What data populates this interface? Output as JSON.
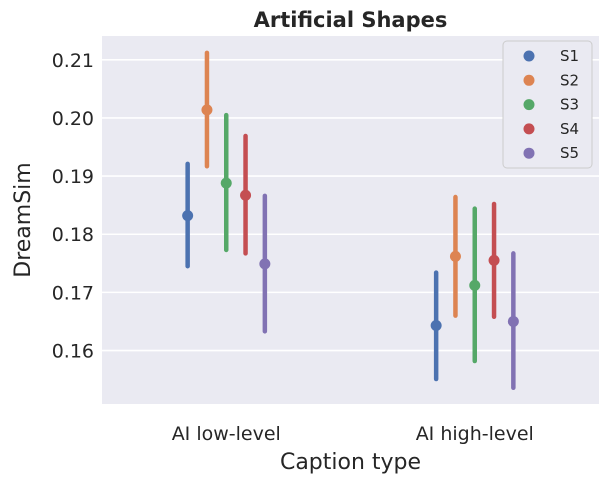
{
  "chart_data": {
    "type": "pointplot",
    "title": "Artificial Shapes",
    "xlabel": "Caption type",
    "ylabel": "DreamSim",
    "categories": [
      "AI low-level",
      "AI high-level"
    ],
    "ylim": [
      0.1508,
      0.2141
    ],
    "yticks": [
      0.16,
      0.17,
      0.18,
      0.19,
      0.2,
      0.21
    ],
    "ytick_labels": [
      "0.16",
      "0.17",
      "0.18",
      "0.19",
      "0.20",
      "0.21"
    ],
    "grid": true,
    "legend_position": "top-right",
    "background": "#eaeaf2",
    "series": [
      {
        "name": "S1",
        "color": "#4c72b0",
        "values": [
          0.1832,
          0.1643
        ],
        "ci_low": [
          0.1745,
          0.1551
        ],
        "ci_high": [
          0.1921,
          0.1734
        ]
      },
      {
        "name": "S2",
        "color": "#dd8452",
        "values": [
          0.2014,
          0.1762
        ],
        "ci_low": [
          0.1917,
          0.166
        ],
        "ci_high": [
          0.2112,
          0.1864
        ]
      },
      {
        "name": "S3",
        "color": "#55a868",
        "values": [
          0.1888,
          0.1712
        ],
        "ci_low": [
          0.1773,
          0.1582
        ],
        "ci_high": [
          0.2005,
          0.1844
        ]
      },
      {
        "name": "S4",
        "color": "#c44e52",
        "values": [
          0.1867,
          0.1755
        ],
        "ci_low": [
          0.1767,
          0.1658
        ],
        "ci_high": [
          0.1969,
          0.1852
        ]
      },
      {
        "name": "S5",
        "color": "#8172b3",
        "values": [
          0.1749,
          0.165
        ],
        "ci_low": [
          0.1633,
          0.1536
        ],
        "ci_high": [
          0.1866,
          0.1767
        ]
      }
    ]
  }
}
